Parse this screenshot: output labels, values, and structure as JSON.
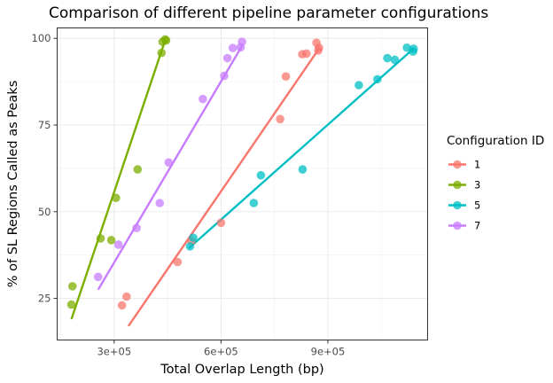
{
  "chart_data": {
    "type": "scatter",
    "title": "Comparison of different pipeline parameter configurations",
    "xlabel": "Total Overlap Length (bp)",
    "ylabel": "% of SL Regions Called as Peaks",
    "xlim": [
      140000,
      1180000
    ],
    "ylim": [
      13,
      103
    ],
    "x_ticks": [
      {
        "value": 300000,
        "label": "3e+05"
      },
      {
        "value": 600000,
        "label": "6e+05"
      },
      {
        "value": 900000,
        "label": "9e+05"
      }
    ],
    "y_ticks": [
      {
        "value": 25,
        "label": "25"
      },
      {
        "value": 50,
        "label": "50"
      },
      {
        "value": 75,
        "label": "75"
      },
      {
        "value": 100,
        "label": "100"
      }
    ],
    "grid": true,
    "legend": {
      "title": "Configuration ID",
      "position": "right"
    },
    "series": [
      {
        "name": "1",
        "color": "#F8766D",
        "points": [
          [
            322000,
            23
          ],
          [
            335000,
            25.5
          ],
          [
            478000,
            35.5
          ],
          [
            517000,
            41.5
          ],
          [
            600000,
            46.8
          ],
          [
            766000,
            76.7
          ],
          [
            782000,
            89
          ],
          [
            828000,
            95.4
          ],
          [
            840000,
            95.6
          ],
          [
            868000,
            98.7
          ],
          [
            873000,
            96.5
          ],
          [
            875000,
            97.3
          ]
        ],
        "fit": [
          [
            340000,
            17
          ],
          [
            875000,
            97
          ]
        ]
      },
      {
        "name": "3",
        "color": "#7CAE00",
        "points": [
          [
            180000,
            23.2
          ],
          [
            183000,
            28.5
          ],
          [
            262000,
            42.3
          ],
          [
            292000,
            41.8
          ],
          [
            305000,
            54
          ],
          [
            366000,
            62.2
          ],
          [
            433000,
            95.8
          ],
          [
            436000,
            99
          ],
          [
            443000,
            99.7
          ],
          [
            446000,
            99.4
          ]
        ],
        "fit": [
          [
            180000,
            19
          ],
          [
            445000,
            100
          ]
        ]
      },
      {
        "name": "5",
        "color": "#00BFC4",
        "points": [
          [
            513000,
            40
          ],
          [
            522000,
            42.5
          ],
          [
            692000,
            52.5
          ],
          [
            712000,
            60.5
          ],
          [
            829000,
            62.2
          ],
          [
            987000,
            86.5
          ],
          [
            1039000,
            88.2
          ],
          [
            1067000,
            94.3
          ],
          [
            1088000,
            93.8
          ],
          [
            1122000,
            97.3
          ],
          [
            1139000,
            96.2
          ],
          [
            1141000,
            97
          ]
        ],
        "fit": [
          [
            510000,
            39.5
          ],
          [
            1140000,
            97
          ]
        ]
      },
      {
        "name": "7",
        "color": "#C77CFF",
        "points": [
          [
            255000,
            31.2
          ],
          [
            312000,
            40.5
          ],
          [
            363000,
            45.3
          ],
          [
            428000,
            52.5
          ],
          [
            453000,
            64.2
          ],
          [
            549000,
            82.5
          ],
          [
            609000,
            89.2
          ],
          [
            618000,
            94.3
          ],
          [
            633000,
            97.2
          ],
          [
            655000,
            97.4
          ],
          [
            659000,
            99
          ]
        ],
        "fit": [
          [
            255000,
            27.5
          ],
          [
            660000,
            98
          ]
        ]
      }
    ]
  }
}
